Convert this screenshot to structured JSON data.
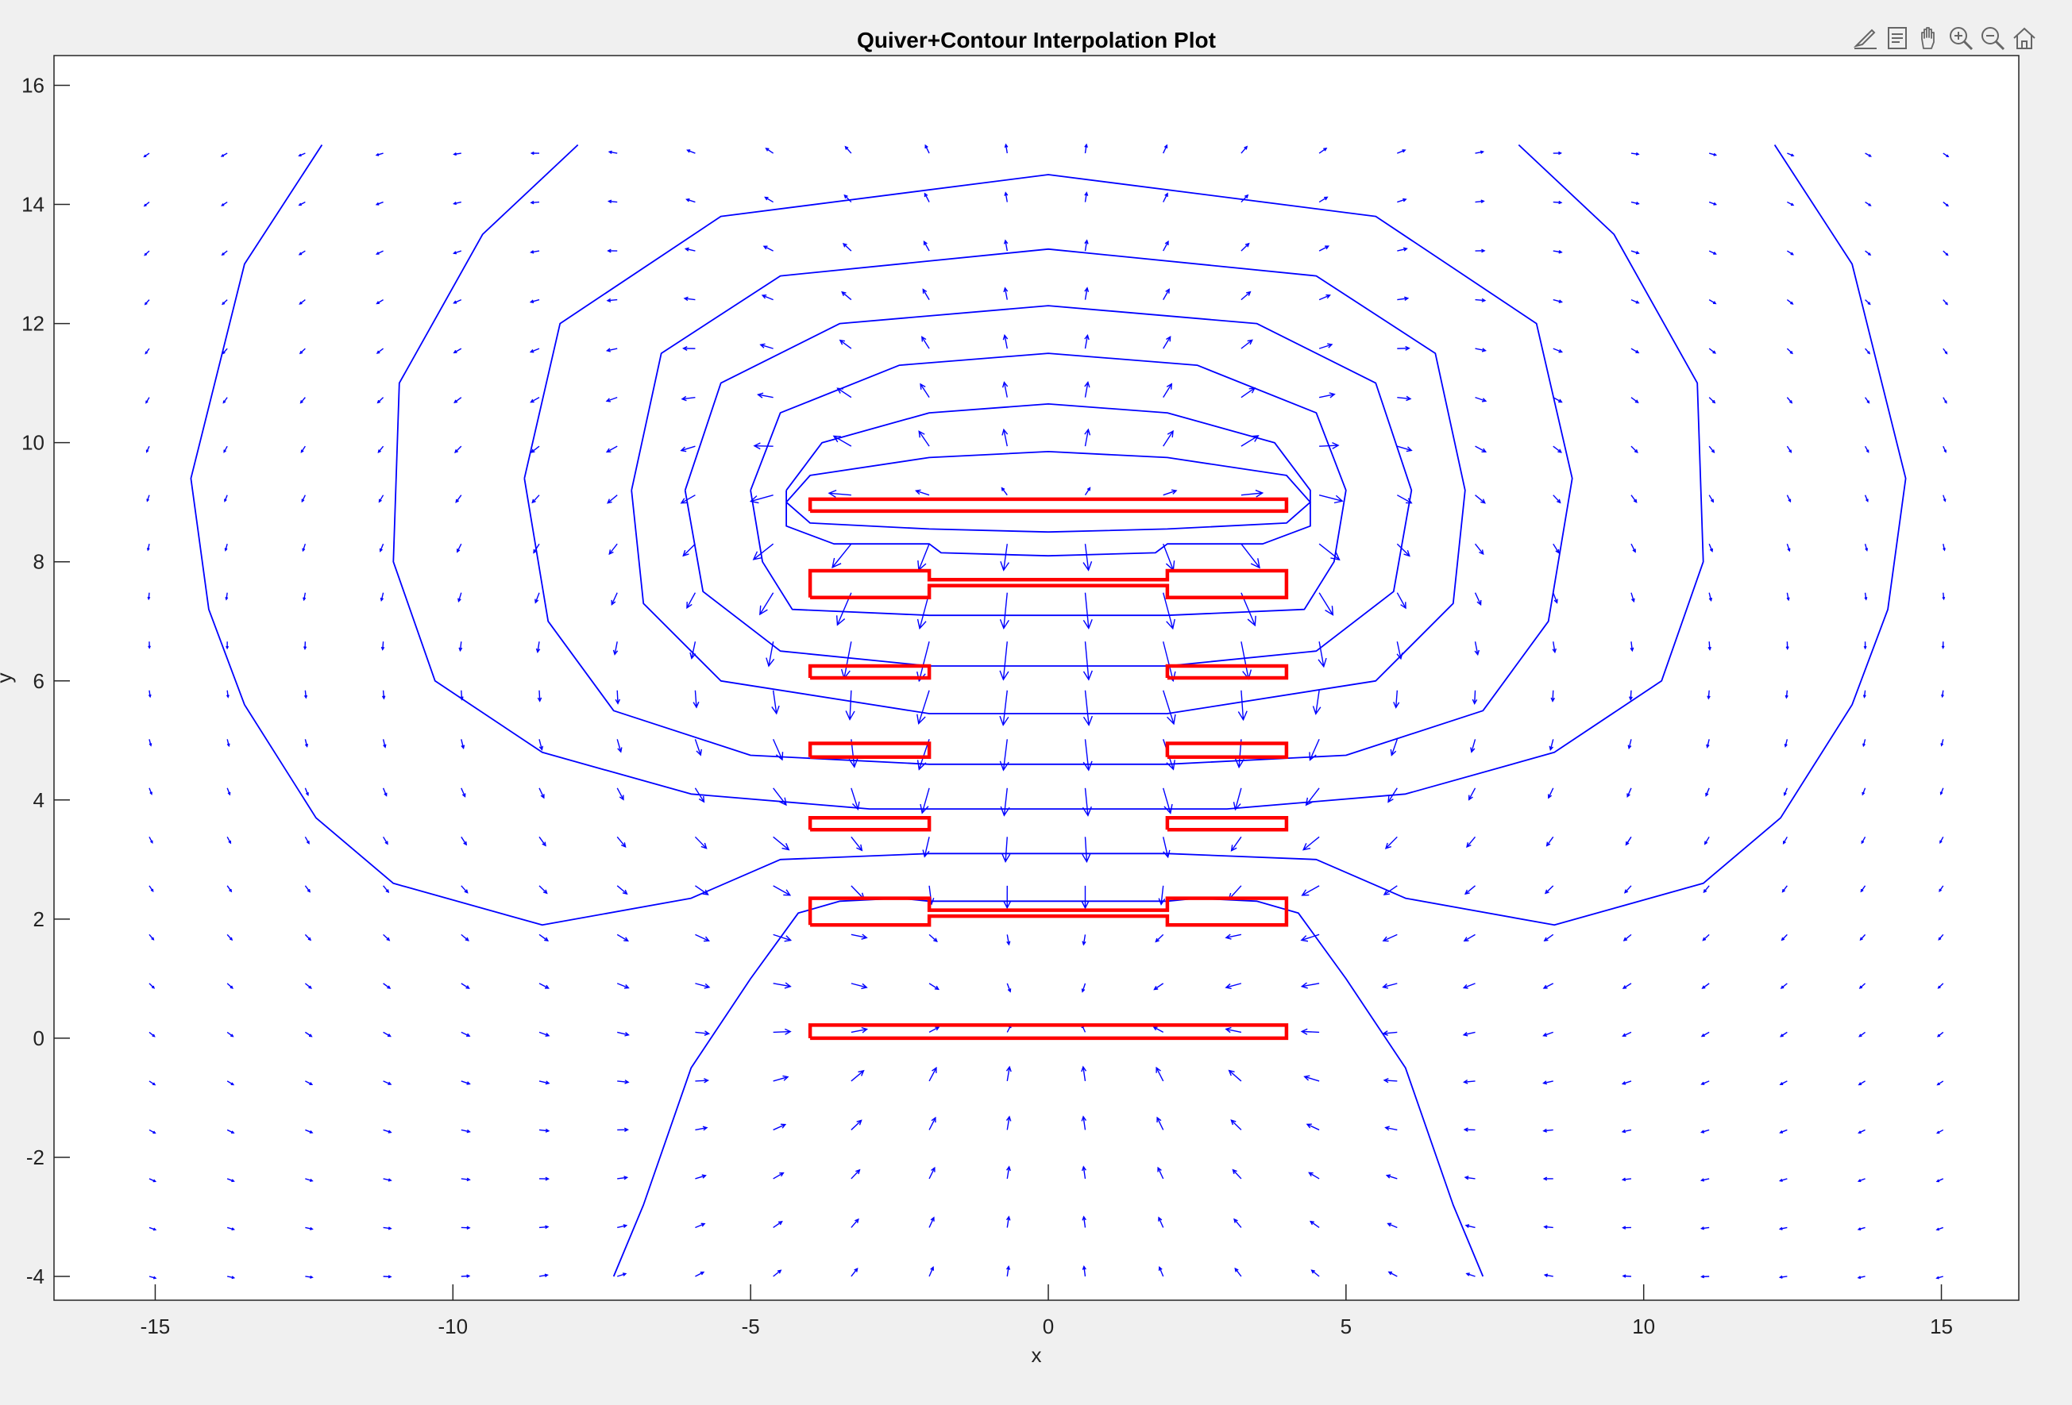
{
  "toolbar": {
    "buttons": [
      {
        "name": "edit-plot-icon"
      },
      {
        "name": "data-tips-icon"
      },
      {
        "name": "pan-icon"
      },
      {
        "name": "zoom-in-icon"
      },
      {
        "name": "zoom-out-icon"
      },
      {
        "name": "restore-view-icon"
      }
    ]
  },
  "chart_data": {
    "type": "quiver+contour",
    "title": "Quiver+Contour Interpolation Plot",
    "xlabel": "x",
    "ylabel": "y",
    "xlim": [
      -16.7,
      16.3
    ],
    "ylim": [
      -4.4,
      16.5
    ],
    "xticks": [
      -15,
      -10,
      -5,
      0,
      5,
      10,
      15
    ],
    "yticks": [
      -4,
      -2,
      0,
      2,
      4,
      6,
      8,
      10,
      12,
      14,
      16
    ],
    "colors": {
      "quiver": "#0000ff",
      "contour": "#0000ff",
      "conductors": "#ff0000",
      "axes_bg": "#ffffff",
      "figure_bg": "#f0f0f0"
    },
    "quiver_grid": {
      "x_start": -15.1,
      "x_step": 1.31,
      "x_count": 24,
      "y_start": -4.0,
      "y_step": 0.82,
      "y_count": 24
    },
    "conductors": [
      [
        [
          -4,
          8.85
        ],
        [
          4,
          8.85
        ],
        [
          4,
          9.05
        ],
        [
          -4,
          9.05
        ],
        [
          -4,
          8.85
        ]
      ],
      [
        [
          -4,
          7.4
        ],
        [
          -2,
          7.4
        ],
        [
          -2,
          7.6
        ],
        [
          2,
          7.6
        ],
        [
          2,
          7.4
        ],
        [
          4,
          7.4
        ],
        [
          4,
          7.85
        ],
        [
          2,
          7.85
        ],
        [
          2,
          7.7
        ],
        [
          -2,
          7.7
        ],
        [
          -2,
          7.85
        ],
        [
          -4,
          7.85
        ],
        [
          -4,
          7.4
        ]
      ],
      [
        [
          -4,
          6.05
        ],
        [
          -2,
          6.05
        ],
        [
          -2,
          6.25
        ],
        [
          -4,
          6.25
        ],
        [
          -4,
          6.05
        ]
      ],
      [
        [
          2,
          6.05
        ],
        [
          4,
          6.05
        ],
        [
          4,
          6.25
        ],
        [
          2,
          6.25
        ],
        [
          2,
          6.05
        ]
      ],
      [
        [
          -4,
          4.72
        ],
        [
          -2,
          4.72
        ],
        [
          -2,
          4.95
        ],
        [
          -4,
          4.95
        ],
        [
          -4,
          4.72
        ]
      ],
      [
        [
          2,
          4.72
        ],
        [
          4,
          4.72
        ],
        [
          4,
          4.95
        ],
        [
          2,
          4.95
        ],
        [
          2,
          4.72
        ]
      ],
      [
        [
          -4,
          3.5
        ],
        [
          -2,
          3.5
        ],
        [
          -2,
          3.7
        ],
        [
          -4,
          3.7
        ],
        [
          -4,
          3.5
        ]
      ],
      [
        [
          2,
          3.5
        ],
        [
          4,
          3.5
        ],
        [
          4,
          3.7
        ],
        [
          2,
          3.7
        ],
        [
          2,
          3.5
        ]
      ],
      [
        [
          -4,
          1.9
        ],
        [
          -2,
          1.9
        ],
        [
          -2,
          2.05
        ],
        [
          2,
          2.05
        ],
        [
          2,
          1.9
        ],
        [
          4,
          1.9
        ],
        [
          4,
          2.35
        ],
        [
          2,
          2.35
        ],
        [
          2,
          2.15
        ],
        [
          -2,
          2.15
        ],
        [
          -2,
          2.35
        ],
        [
          -4,
          2.35
        ],
        [
          -4,
          1.9
        ]
      ],
      [
        [
          -4,
          0.0
        ],
        [
          4,
          0.0
        ],
        [
          4,
          0.22
        ],
        [
          -4,
          0.22
        ],
        [
          -4,
          0.0
        ]
      ]
    ],
    "contours": [
      [
        [
          -4.4,
          9.0
        ],
        [
          -4.0,
          9.45
        ],
        [
          -2,
          9.75
        ],
        [
          0,
          9.85
        ],
        [
          2,
          9.75
        ],
        [
          4.0,
          9.45
        ],
        [
          4.4,
          9.0
        ],
        [
          4.0,
          8.65
        ],
        [
          2,
          8.55
        ],
        [
          0,
          8.5
        ],
        [
          -2,
          8.55
        ],
        [
          -4.0,
          8.65
        ],
        [
          -4.4,
          9.0
        ]
      ],
      [
        [
          -4.4,
          9.2
        ],
        [
          -3.8,
          10.0
        ],
        [
          -2,
          10.5
        ],
        [
          0,
          10.65
        ],
        [
          2,
          10.5
        ],
        [
          3.8,
          10.0
        ],
        [
          4.4,
          9.2
        ],
        [
          4.4,
          8.6
        ],
        [
          3.6,
          8.3
        ],
        [
          2,
          8.3
        ],
        [
          1.8,
          8.15
        ],
        [
          0,
          8.1
        ],
        [
          -1.8,
          8.15
        ],
        [
          -2,
          8.3
        ],
        [
          -3.6,
          8.3
        ],
        [
          -4.4,
          8.6
        ],
        [
          -4.4,
          9.2
        ]
      ],
      [
        [
          -5.0,
          9.2
        ],
        [
          -4.5,
          10.5
        ],
        [
          -2.5,
          11.3
        ],
        [
          0,
          11.5
        ],
        [
          2.5,
          11.3
        ],
        [
          4.5,
          10.5
        ],
        [
          5.0,
          9.2
        ],
        [
          4.8,
          8.0
        ],
        [
          4.3,
          7.2
        ],
        [
          2,
          7.1
        ],
        [
          0,
          7.1
        ],
        [
          -2,
          7.1
        ],
        [
          -4.3,
          7.2
        ],
        [
          -4.8,
          8.0
        ],
        [
          -5.0,
          9.2
        ]
      ],
      [
        [
          -6.1,
          9.2
        ],
        [
          -5.5,
          11.0
        ],
        [
          -3.5,
          12.0
        ],
        [
          0,
          12.3
        ],
        [
          3.5,
          12.0
        ],
        [
          5.5,
          11.0
        ],
        [
          6.1,
          9.2
        ],
        [
          5.8,
          7.5
        ],
        [
          4.5,
          6.5
        ],
        [
          2,
          6.25
        ],
        [
          0,
          6.25
        ],
        [
          -2,
          6.25
        ],
        [
          -4.5,
          6.5
        ],
        [
          -5.8,
          7.5
        ],
        [
          -6.1,
          9.2
        ]
      ],
      [
        [
          -7.0,
          9.2
        ],
        [
          -6.5,
          11.5
        ],
        [
          -4.5,
          12.8
        ],
        [
          0,
          13.25
        ],
        [
          4.5,
          12.8
        ],
        [
          6.5,
          11.5
        ],
        [
          7.0,
          9.2
        ],
        [
          6.8,
          7.3
        ],
        [
          5.5,
          6.0
        ],
        [
          2,
          5.45
        ],
        [
          0,
          5.45
        ],
        [
          -2,
          5.45
        ],
        [
          -5.5,
          6.0
        ],
        [
          -6.8,
          7.3
        ],
        [
          -7.0,
          9.2
        ]
      ],
      [
        [
          -8.8,
          9.4
        ],
        [
          -8.2,
          12.0
        ],
        [
          -5.5,
          13.8
        ],
        [
          0,
          14.5
        ],
        [
          5.5,
          13.8
        ],
        [
          8.2,
          12.0
        ],
        [
          8.8,
          9.4
        ],
        [
          8.4,
          7.0
        ],
        [
          7.3,
          5.5
        ],
        [
          5,
          4.75
        ],
        [
          2,
          4.6
        ],
        [
          0,
          4.6
        ],
        [
          -2,
          4.6
        ],
        [
          -5,
          4.75
        ],
        [
          -7.3,
          5.5
        ],
        [
          -8.4,
          7.0
        ],
        [
          -8.8,
          9.4
        ]
      ],
      [
        [
          -7.9,
          15.0
        ],
        [
          -9.5,
          13.5
        ],
        [
          -10.9,
          11.0
        ],
        [
          -11.0,
          8.0
        ],
        [
          -10.3,
          6.0
        ],
        [
          -8.5,
          4.8
        ],
        [
          -6,
          4.1
        ],
        [
          -3,
          3.85
        ],
        [
          0,
          3.85
        ],
        [
          3,
          3.85
        ],
        [
          6,
          4.1
        ],
        [
          8.5,
          4.8
        ],
        [
          10.3,
          6.0
        ],
        [
          11.0,
          8.0
        ],
        [
          10.9,
          11.0
        ],
        [
          9.5,
          13.5
        ],
        [
          7.9,
          15.0
        ]
      ],
      [
        [
          -12.2,
          15.0
        ],
        [
          -13.5,
          13.0
        ],
        [
          -14.4,
          9.4
        ],
        [
          -14.1,
          7.2
        ],
        [
          -13.5,
          5.6
        ],
        [
          -12.3,
          3.7
        ],
        [
          -11.0,
          2.6
        ],
        [
          -8.5,
          1.9
        ],
        [
          -6,
          2.35
        ],
        [
          -4.5,
          3.0
        ],
        [
          -2,
          3.1
        ],
        [
          0,
          3.1
        ],
        [
          2,
          3.1
        ],
        [
          4.5,
          3.0
        ],
        [
          6,
          2.35
        ],
        [
          8.5,
          1.9
        ],
        [
          11.0,
          2.6
        ],
        [
          12.3,
          3.7
        ],
        [
          13.5,
          5.6
        ],
        [
          14.1,
          7.2
        ],
        [
          14.4,
          9.4
        ],
        [
          13.5,
          13.0
        ],
        [
          12.2,
          15.0
        ]
      ],
      [
        [
          -7.3,
          -4.0
        ],
        [
          -6.8,
          -2.8
        ],
        [
          -6.0,
          -0.5
        ],
        [
          -5.0,
          1.0
        ],
        [
          -4.2,
          2.1
        ],
        [
          -3.5,
          2.3
        ],
        [
          -2.5,
          2.35
        ],
        [
          -2,
          2.3
        ],
        [
          2,
          2.3
        ],
        [
          2.5,
          2.35
        ],
        [
          3.5,
          2.3
        ],
        [
          4.2,
          2.1
        ],
        [
          5.0,
          1.0
        ],
        [
          6.0,
          -0.5
        ],
        [
          6.8,
          -2.8
        ],
        [
          7.3,
          -4.0
        ]
      ]
    ]
  }
}
